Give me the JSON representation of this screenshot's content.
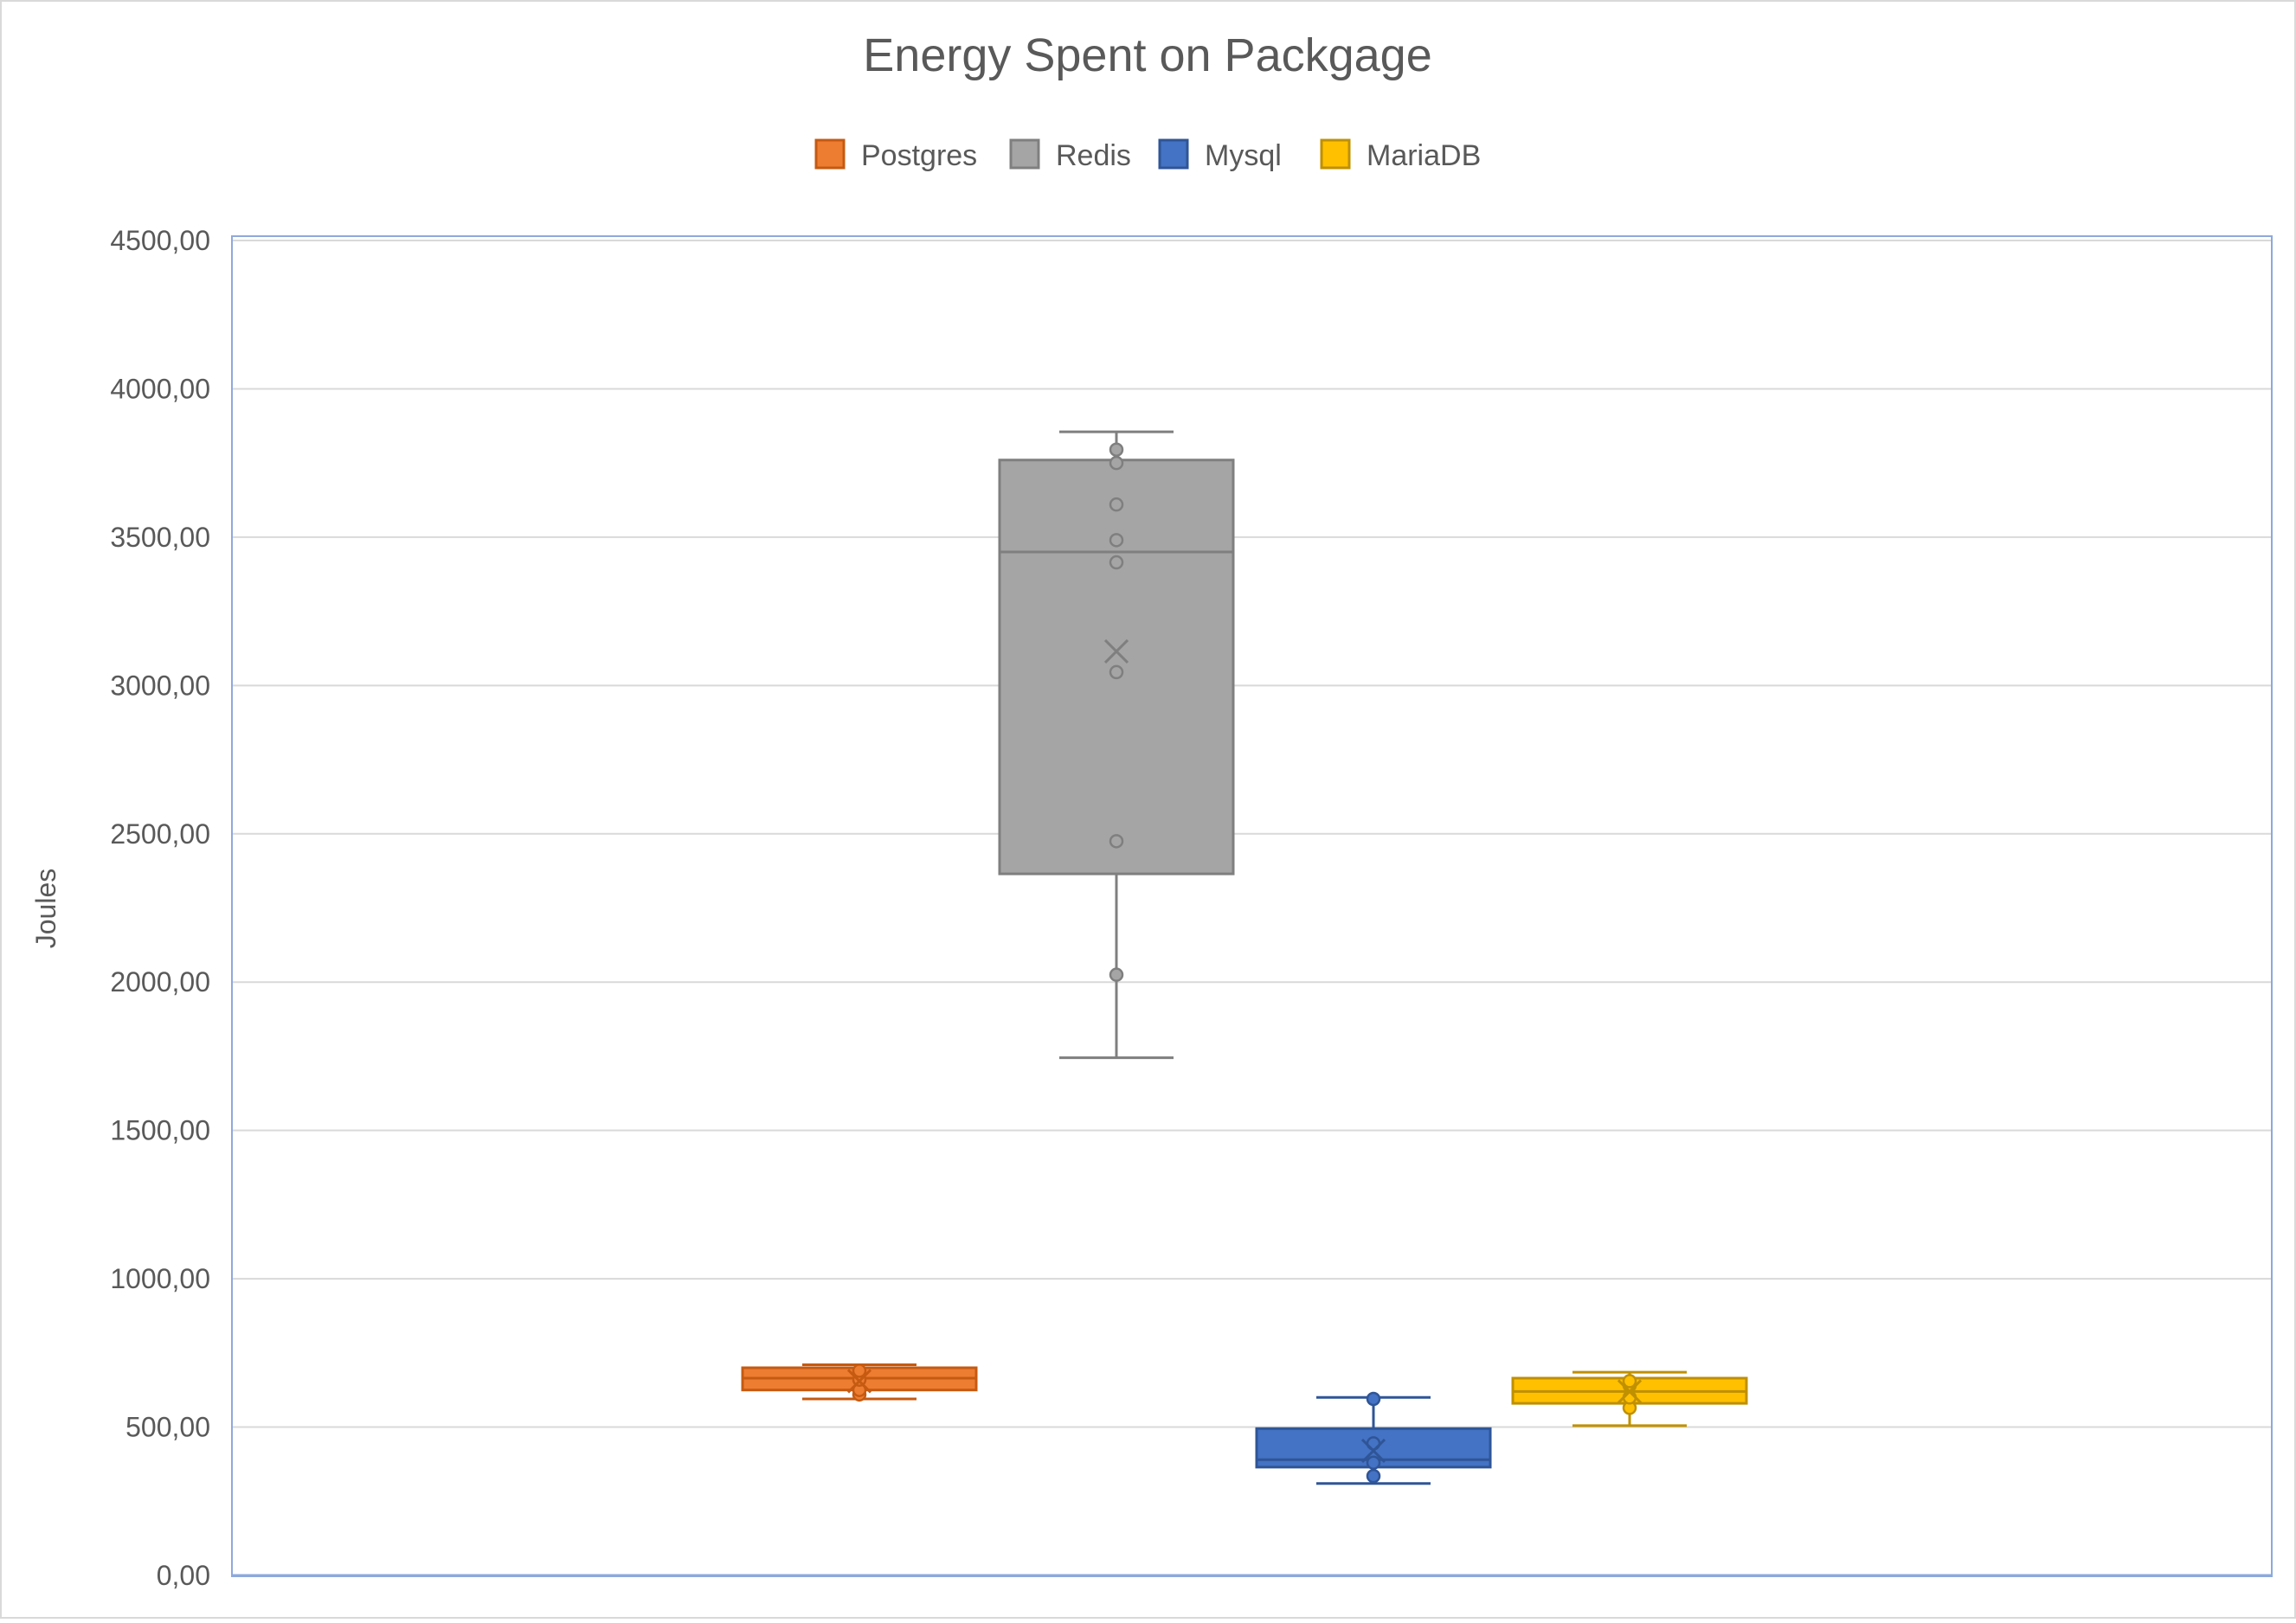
{
  "chart_data": {
    "type": "box",
    "title": "Energy Spent on Packgage",
    "xlabel": "",
    "ylabel": "Joules",
    "ylim": [
      0,
      4500
    ],
    "ytick_step": 500,
    "ytick_labels": [
      "0,00",
      "500,00",
      "1000,00",
      "1500,00",
      "2000,00",
      "2500,00",
      "3000,00",
      "3500,00",
      "4000,00",
      "4500,00"
    ],
    "grid": true,
    "legend": "top",
    "series": [
      {
        "name": "Postgres",
        "color": "#ED7D31",
        "stroke": "#C55A11",
        "min": 595,
        "q1": 625,
        "median": 665,
        "q3": 700,
        "max": 710,
        "mean": 655,
        "points": [
          610,
          625,
          660,
          690
        ]
      },
      {
        "name": "Redis",
        "color": "#A5A5A5",
        "stroke": "#7F7F7F",
        "min": 1745,
        "q1": 2365,
        "median": 3450,
        "q3": 3760,
        "max": 3855,
        "mean": 3115,
        "points": [
          2025,
          2475,
          3045,
          3415,
          3490,
          3610,
          3750,
          3795
        ]
      },
      {
        "name": "Mysql",
        "color": "#4472C4",
        "stroke": "#2F5597",
        "min": 310,
        "q1": 365,
        "median": 390,
        "q3": 495,
        "max": 600,
        "mean": 420,
        "points": [
          335,
          380,
          445,
          595
        ]
      },
      {
        "name": "MariaDB",
        "color": "#FFC000",
        "stroke": "#BF9000",
        "min": 505,
        "q1": 580,
        "median": 620,
        "q3": 665,
        "max": 685,
        "mean": 620,
        "points": [
          565,
          600,
          640,
          655
        ]
      }
    ]
  }
}
